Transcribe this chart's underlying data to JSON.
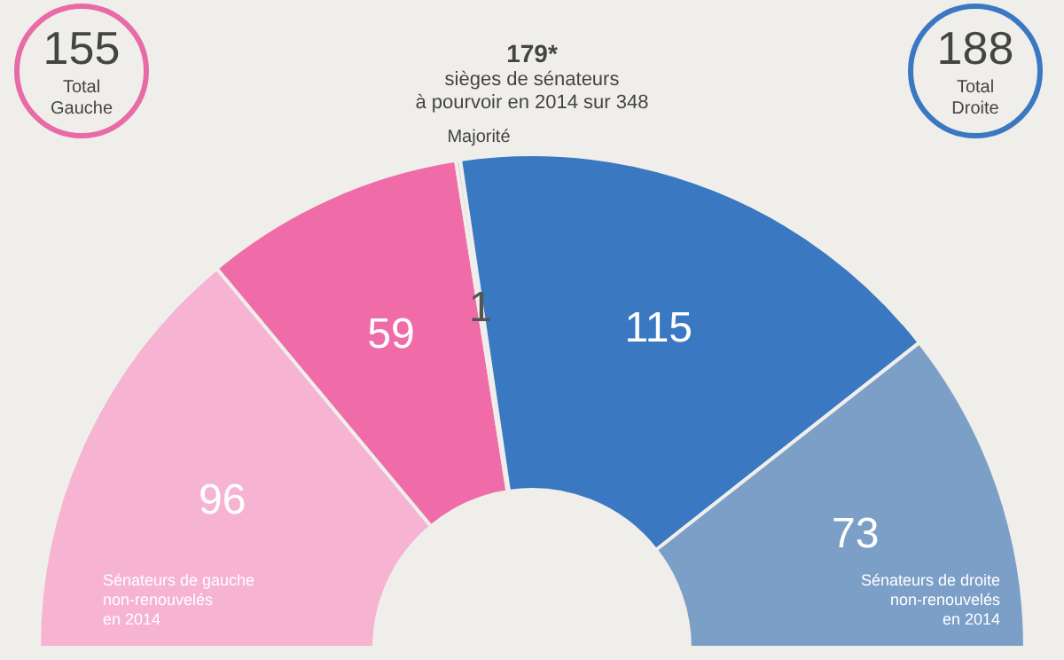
{
  "chart_data": {
    "type": "donut",
    "categories": [
      null,
      null,
      null,
      null,
      null
    ],
    "values": [
      96,
      59,
      1,
      115,
      73
    ],
    "colors": [
      "#f6b3d2",
      "#f06ca8",
      "#d8d4cc",
      "#3a78c2",
      "#7b9fc7"
    ],
    "data_labels": true,
    "legend": false,
    "annotations": [
      "155\nTotal\nGauche",
      "188\nTotal\nDroite",
      "179*\nsièges de sénateurs\nà pourvoir en 2014 sur 348",
      "Majorité",
      "Sénateurs de gauche\nnon-renouvelés\nen 2014",
      "Sénateurs de droite\nnon-renouvelés\nen 2014"
    ]
  }
}
